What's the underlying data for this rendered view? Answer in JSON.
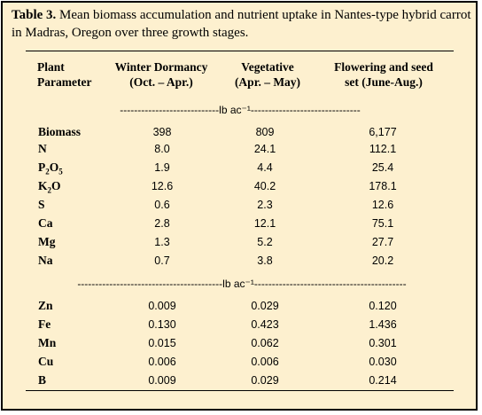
{
  "caption": {
    "label": "Table 3.",
    "text": " Mean biomass accumulation and nutrient uptake in Nantes-type hybrid carrot in Madras, Oregon over three growth stages."
  },
  "headers": {
    "param": [
      "Plant",
      "Parameter"
    ],
    "col1": [
      "Winter Dormancy",
      "(Oct. – Apr.)"
    ],
    "col2": [
      "Vegetative",
      "(Apr. – May)"
    ],
    "col3": [
      "Flowering and seed",
      "set (June-Aug.)"
    ]
  },
  "unit_macro": "----------------------------lb ac⁻¹-------------------------------",
  "unit_micro": "-----------------------------------------lb ac⁻¹-------------------------------------------",
  "macro_rows": [
    {
      "name": "Biomass",
      "sub": "",
      "name_tail": "",
      "v1": "398",
      "v2": "809",
      "v3": "6,177"
    },
    {
      "name": "N",
      "sub": "",
      "name_tail": "",
      "v1": "8.0",
      "v2": "24.1",
      "v3": "112.1"
    },
    {
      "name": "P",
      "sub": "2",
      "name_tail": "O",
      "sub2": "5",
      "v1": "1.9",
      "v2": "4.4",
      "v3": "25.4"
    },
    {
      "name": "K",
      "sub": "2",
      "name_tail": "O",
      "v1": "12.6",
      "v2": "40.2",
      "v3": "178.1"
    },
    {
      "name": "S",
      "sub": "",
      "name_tail": "",
      "v1": "0.6",
      "v2": "2.3",
      "v3": "12.6"
    },
    {
      "name": "Ca",
      "sub": "",
      "name_tail": "",
      "v1": "2.8",
      "v2": "12.1",
      "v3": "75.1"
    },
    {
      "name": "Mg",
      "sub": "",
      "name_tail": "",
      "v1": "1.3",
      "v2": "5.2",
      "v3": "27.7"
    },
    {
      "name": "Na",
      "sub": "",
      "name_tail": "",
      "v1": "0.7",
      "v2": "3.8",
      "v3": "20.2"
    }
  ],
  "micro_rows": [
    {
      "name": "Zn",
      "v1": "0.009",
      "v2": "0.029",
      "v3": "0.120"
    },
    {
      "name": "Fe",
      "v1": "0.130",
      "v2": "0.423",
      "v3": "1.436"
    },
    {
      "name": "Mn",
      "v1": "0.015",
      "v2": "0.062",
      "v3": "0.301"
    },
    {
      "name": "Cu",
      "v1": "0.006",
      "v2": "0.006",
      "v3": "0.030"
    },
    {
      "name": "B",
      "v1": "0.009",
      "v2": "0.029",
      "v3": "0.214"
    }
  ]
}
